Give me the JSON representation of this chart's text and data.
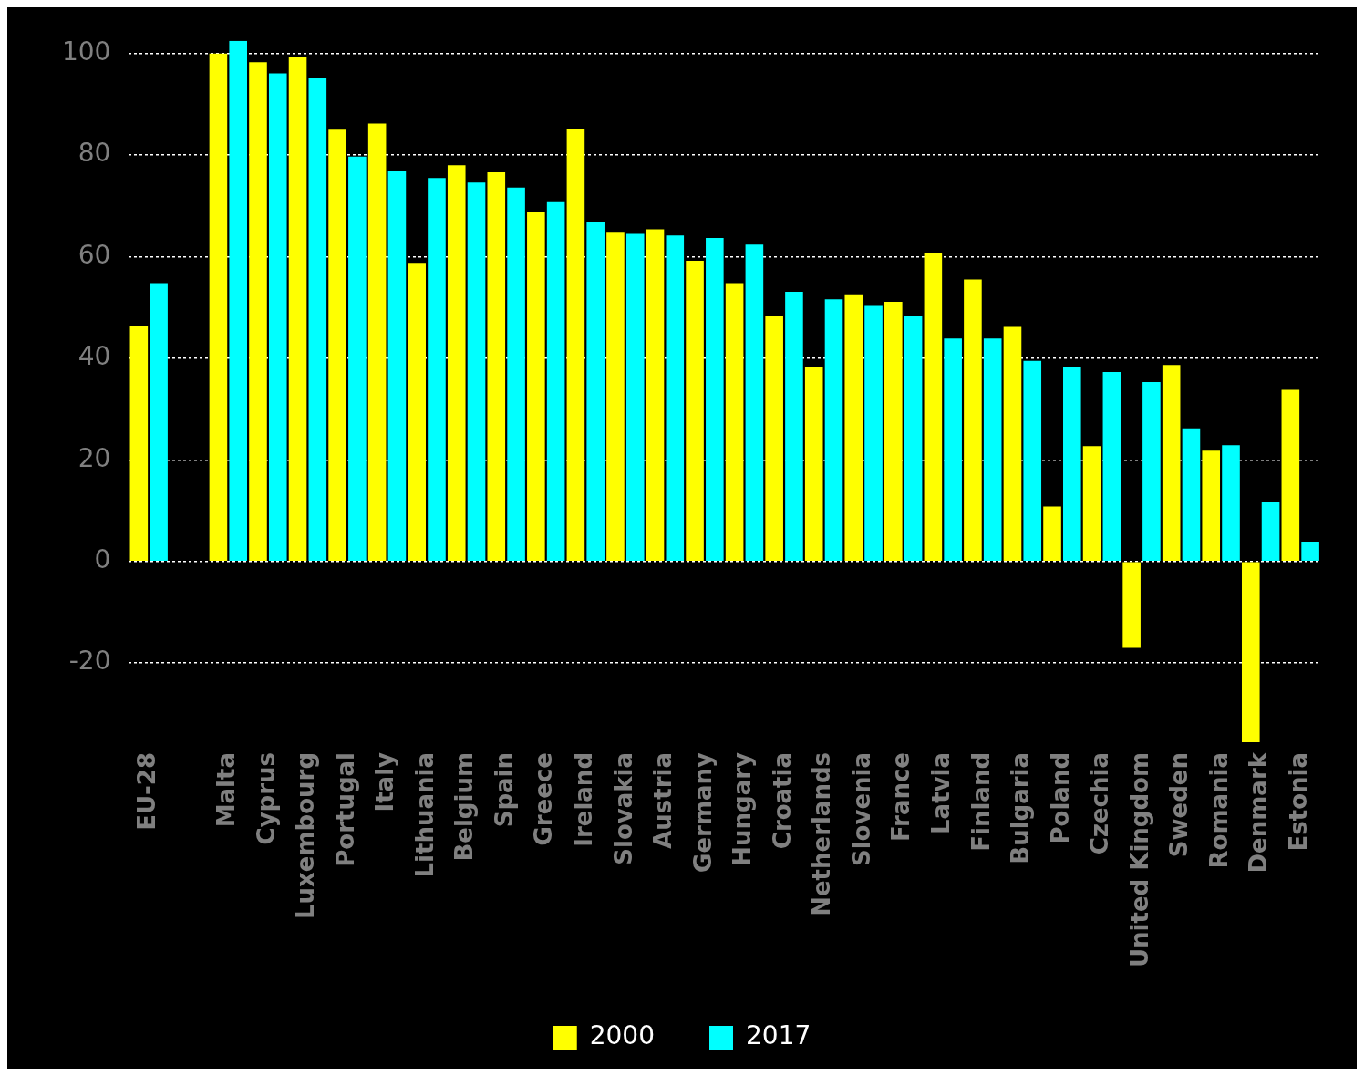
{
  "chart_data": {
    "type": "bar",
    "categories": [
      "EU-28",
      null,
      "Malta",
      "Cyprus",
      "Luxembourg",
      "Portugal",
      "Italy",
      "Lithuania",
      "Belgium",
      "Spain",
      "Greece",
      "Ireland",
      "Slovakia",
      "Austria",
      "Germany",
      "Hungary",
      "Croatia",
      "Netherlands",
      "Slovenia",
      "France",
      "Latvia",
      "Finland",
      "Bulgaria",
      "Poland",
      "Czechia",
      "United Kingdom",
      "Sweden",
      "Romania",
      "Denmark",
      "Estonia"
    ],
    "series": [
      {
        "name": "2000",
        "color": "#ffff00",
        "values": [
          46.4,
          null,
          100,
          98.3,
          99.3,
          85.0,
          86.2,
          58.8,
          78.0,
          76.6,
          68.9,
          85.2,
          64.9,
          65.4,
          59.2,
          54.8,
          48.4,
          38.2,
          52.6,
          51.1,
          60.7,
          55.5,
          46.2,
          10.8,
          22.7,
          -17.0,
          38.7,
          21.8,
          -35.6,
          33.8
        ]
      },
      {
        "name": "2017",
        "color": "#00ffff",
        "values": [
          54.8,
          null,
          102.5,
          96.1,
          95.1,
          79.7,
          76.8,
          75.5,
          74.6,
          73.6,
          70.9,
          66.9,
          64.5,
          64.2,
          63.7,
          62.4,
          53.1,
          51.6,
          50.3,
          48.4,
          43.9,
          43.9,
          39.5,
          38.2,
          37.3,
          35.3,
          26.2,
          22.9,
          11.6,
          3.9
        ]
      }
    ],
    "ylim": [
      -35.6,
      102.5
    ],
    "yticks": [
      -20,
      0,
      20,
      40,
      60,
      80,
      100
    ],
    "grid": "y",
    "legend": "bottom"
  }
}
